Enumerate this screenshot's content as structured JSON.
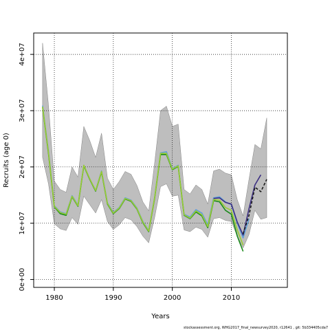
{
  "chart_data": {
    "type": "line",
    "xlabel": "Years",
    "ylabel": "Recruits (age 0)",
    "xlim": [
      1976.5,
      2019.5
    ],
    "ylim": [
      -1400000,
      43800000
    ],
    "x_ticks": [
      1980,
      1990,
      2000,
      2010
    ],
    "x_tick_labels": [
      "1980",
      "1990",
      "2000",
      "2010"
    ],
    "y_ticks": [
      0,
      10000000,
      20000000,
      30000000,
      40000000
    ],
    "y_tick_labels": [
      "0e+00",
      "1e+07",
      "2e+07",
      "3e+07",
      "4e+07"
    ],
    "grid": true,
    "footer": "stockassessment.org, WHG2017_final_newsurvey2020, r12641 , git: 5b334405cda7",
    "colors": {
      "band": "#bebebe",
      "band_edge": "#808080",
      "blue": "#5f9ed8",
      "green": "#1a8a1a",
      "olive": "#9acd32",
      "purple": "#3c2f82",
      "dashed": "#1a1a1a",
      "grid": "#000000"
    },
    "band": {
      "x": [
        1978,
        1979,
        1980,
        1981,
        1982,
        1983,
        1984,
        1985,
        1986,
        1987,
        1988,
        1989,
        1990,
        1991,
        1992,
        1993,
        1994,
        1995,
        1996,
        1997,
        1998,
        1999,
        2000,
        2001,
        2002,
        2003,
        2004,
        2005,
        2006,
        2007,
        2008,
        2009,
        2010,
        2011,
        2012,
        2013,
        2014,
        2015,
        2016
      ],
      "upper": [
        42000000,
        31000000,
        17500000,
        16000000,
        15500000,
        20000000,
        18200000,
        27200000,
        24700000,
        21700000,
        26000000,
        18000000,
        16000000,
        17400000,
        19200000,
        18700000,
        16700000,
        13800000,
        12200000,
        20700000,
        30000000,
        30800000,
        27200000,
        27600000,
        16000000,
        15200000,
        16800000,
        16000000,
        13400000,
        19300000,
        19600000,
        18900000,
        18600000,
        14200000,
        11300000,
        17800000,
        24000000,
        23200000,
        28700000
      ],
      "lower": [
        21700000,
        17000000,
        9900000,
        9000000,
        8700000,
        11000000,
        9800000,
        14800000,
        13300000,
        11800000,
        14200000,
        10300000,
        8900000,
        9700000,
        11000000,
        10600000,
        9400000,
        7700000,
        6500000,
        11000000,
        16500000,
        17000000,
        14800000,
        15000000,
        8800000,
        8500000,
        9300000,
        8900000,
        7500000,
        10800000,
        11000000,
        10500000,
        10300000,
        7700000,
        5600000,
        8000000,
        12300000,
        10700000,
        11000000
      ]
    },
    "series": [
      {
        "color_key": "blue",
        "x": [
          1978,
          1979,
          1980,
          1981,
          1982,
          1983,
          1984,
          1985,
          1986,
          1987,
          1988,
          1989,
          1990,
          1991,
          1992,
          1993,
          1994,
          1995,
          1996,
          1997,
          1998,
          1999,
          2000,
          2001,
          2002,
          2003,
          2004,
          2005,
          2006,
          2007,
          2008,
          2009,
          2010,
          2011,
          2012,
          2013
        ],
        "values": [
          30900000,
          22800000,
          13100000,
          12000000,
          11700000,
          14900000,
          13200000,
          20300000,
          17900000,
          15800000,
          19300000,
          13600000,
          11900000,
          12800000,
          14500000,
          14100000,
          12700000,
          10300000,
          8700000,
          14600000,
          22500000,
          22700000,
          19700000,
          20300000,
          11600000,
          11100000,
          12400000,
          11800000,
          9700000,
          14500000,
          14700000,
          13800000,
          13300000,
          10000000,
          7400000,
          10800000
        ]
      },
      {
        "color_key": "green",
        "x": [
          1978,
          1979,
          1980,
          1981,
          1982,
          1983,
          1984,
          1985,
          1986,
          1987,
          1988,
          1989,
          1990,
          1991,
          1992,
          1993,
          1994,
          1995,
          1996,
          1997,
          1998,
          1999,
          2000,
          2001,
          2002,
          2003,
          2004,
          2005,
          2006,
          2007,
          2008,
          2009,
          2010,
          2011,
          2012
        ],
        "values": [
          30600000,
          22400000,
          12900000,
          11700000,
          11400000,
          14700000,
          13000000,
          20200000,
          17800000,
          15700000,
          19100000,
          13400000,
          11700000,
          12600000,
          14300000,
          13900000,
          12500000,
          10100000,
          8500000,
          14400000,
          22200000,
          22200000,
          19500000,
          20100000,
          11400000,
          10800000,
          12000000,
          11300000,
          9200000,
          14000000,
          13800000,
          12300000,
          11600000,
          7700000,
          5000000
        ]
      },
      {
        "color_key": "olive",
        "x": [
          1978,
          1979,
          1980,
          1981,
          1982,
          1983,
          1984,
          1985,
          1986,
          1987,
          1988,
          1989,
          1990,
          1991,
          1992,
          1993,
          1994,
          1995,
          1996,
          1997,
          1998,
          1999,
          2000,
          2001,
          2002,
          2003,
          2004,
          2005,
          2006,
          2007,
          2008,
          2009,
          2010,
          2011,
          2012
        ],
        "values": [
          30700000,
          22600000,
          13000000,
          11900000,
          11600000,
          14800000,
          13100000,
          20300000,
          17900000,
          15800000,
          19200000,
          13500000,
          11800000,
          12700000,
          14400000,
          14000000,
          12600000,
          10200000,
          8600000,
          14500000,
          22400000,
          22400000,
          19600000,
          20200000,
          11500000,
          10900000,
          12200000,
          11500000,
          9400000,
          14200000,
          14100000,
          12800000,
          12300000,
          8800000,
          6100000
        ]
      },
      {
        "color_key": "purple",
        "x": [
          2007,
          2008,
          2009,
          2010,
          2011,
          2012,
          2013,
          2014,
          2015
        ],
        "values": [
          14400000,
          14500000,
          13700000,
          13400000,
          10200000,
          7900000,
          12600000,
          16800000,
          18600000
        ]
      },
      {
        "color_key": "dashed",
        "dash": true,
        "x": [
          2012,
          2013,
          2014,
          2015,
          2016
        ],
        "values": [
          8100000,
          11400000,
          16400000,
          15600000,
          17800000
        ]
      }
    ]
  }
}
